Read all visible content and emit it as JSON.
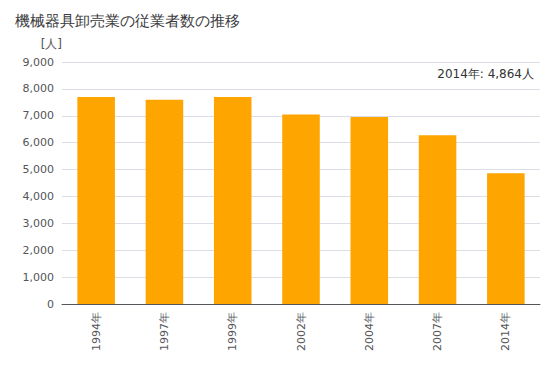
{
  "chart_data": {
    "type": "bar",
    "title": "機械器具卸売業の従業者数の推移",
    "ylabel": "[人]",
    "annotation": "2014年: 4,864人",
    "categories": [
      "1994年",
      "1997年",
      "1999年",
      "2002年",
      "2004年",
      "2007年",
      "2014年"
    ],
    "values": [
      7700,
      7600,
      7700,
      7050,
      6950,
      6280,
      4864
    ],
    "color": "#FFA500",
    "ylim": [
      0,
      9000
    ],
    "yticks": [
      0,
      {
        "value": 1000,
        "label": "1,000"
      },
      {
        "value": 2000,
        "label": "2,000"
      },
      {
        "value": 3000,
        "label": "3,000"
      },
      {
        "value": 4000,
        "label": "4,000"
      },
      {
        "value": 5000,
        "label": "5,000"
      },
      {
        "value": 6000,
        "label": "6,000"
      },
      {
        "value": 7000,
        "label": "7,000"
      },
      {
        "value": 8000,
        "label": "8,000"
      },
      {
        "value": 9000,
        "label": "9,000"
      }
    ],
    "grid": true
  }
}
